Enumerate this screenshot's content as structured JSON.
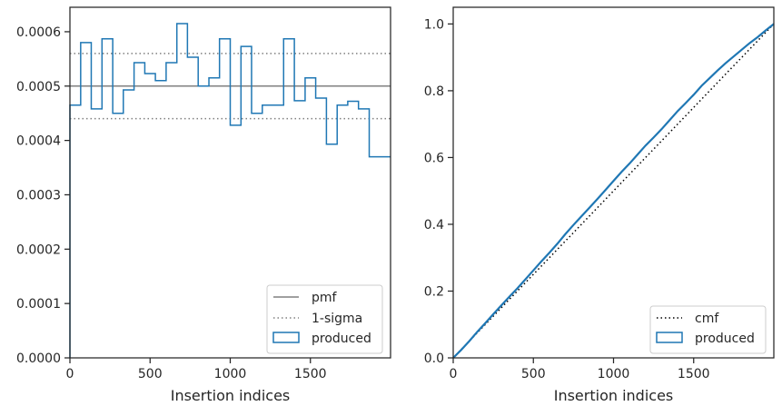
{
  "chart_data": [
    {
      "type": "histogram-step",
      "xlabel": "Insertion indices",
      "ylabel": "",
      "xlim": [
        0,
        2000
      ],
      "ylim": [
        0,
        0.000645
      ],
      "xticks": [
        "0",
        "500",
        "1000",
        "1500"
      ],
      "yticks": [
        "0.0000",
        "0.0001",
        "0.0002",
        "0.0003",
        "0.0004",
        "0.0005",
        "0.0006"
      ],
      "grid": false,
      "legend_position": "lower-right",
      "reference_lines": {
        "pmf": 0.0005,
        "sigma_upper": 0.00056,
        "sigma_lower": 0.00044
      },
      "bin_edges": [
        0,
        67,
        133,
        200,
        267,
        333,
        400,
        467,
        533,
        600,
        667,
        733,
        800,
        867,
        933,
        1000,
        1067,
        1133,
        1200,
        1267,
        1333,
        1400,
        1467,
        1533,
        1600,
        1667,
        1733,
        1800,
        1867,
        1933,
        2000
      ],
      "values": [
        0.000465,
        0.00058,
        0.000458,
        0.000587,
        0.00045,
        0.000493,
        0.000543,
        0.000523,
        0.00051,
        0.000543,
        0.000615,
        0.000553,
        0.0005,
        0.000515,
        0.000587,
        0.000428,
        0.000573,
        0.00045,
        0.000465,
        0.000465,
        0.000587,
        0.000473,
        0.000515,
        0.000478,
        0.000393,
        0.000465,
        0.000472,
        0.000458,
        0.00037,
        0.00037
      ],
      "legend": [
        {
          "label": "pmf",
          "style": "solid-line",
          "color": "#808080"
        },
        {
          "label": "1-sigma",
          "style": "dotted-line",
          "color": "#808080"
        },
        {
          "label": "produced",
          "style": "patch",
          "color": "#1f77b4"
        }
      ]
    },
    {
      "type": "line",
      "xlabel": "Insertion indices",
      "ylabel": "",
      "xlim": [
        0,
        2000
      ],
      "ylim": [
        0,
        1.05
      ],
      "xticks": [
        "0",
        "500",
        "1000",
        "1500"
      ],
      "yticks": [
        "0.0",
        "0.2",
        "0.4",
        "0.6",
        "0.8",
        "1.0"
      ],
      "grid": false,
      "legend_position": "lower-right",
      "series": [
        {
          "name": "cmf",
          "style": "dotted",
          "color": "#000000",
          "x": [
            0,
            2000
          ],
          "y": [
            0,
            1
          ]
        },
        {
          "name": "produced",
          "style": "solid",
          "color": "#1f77b4",
          "x": [
            0,
            50,
            100,
            150,
            200,
            250,
            300,
            350,
            400,
            450,
            500,
            550,
            600,
            650,
            700,
            750,
            800,
            850,
            900,
            950,
            1000,
            1050,
            1100,
            1150,
            1200,
            1250,
            1300,
            1350,
            1400,
            1450,
            1500,
            1550,
            1600,
            1650,
            1700,
            1750,
            1800,
            1850,
            1900,
            1950,
            2000
          ],
          "y": [
            0,
            0.024,
            0.05,
            0.078,
            0.104,
            0.131,
            0.157,
            0.183,
            0.208,
            0.235,
            0.262,
            0.289,
            0.315,
            0.342,
            0.371,
            0.398,
            0.424,
            0.45,
            0.476,
            0.503,
            0.53,
            0.557,
            0.582,
            0.609,
            0.636,
            0.66,
            0.685,
            0.712,
            0.739,
            0.763,
            0.788,
            0.815,
            0.838,
            0.861,
            0.883,
            0.903,
            0.923,
            0.943,
            0.961,
            0.981,
            1.0
          ]
        }
      ],
      "legend": [
        {
          "label": "cmf",
          "style": "dotted-line",
          "color": "#000000"
        },
        {
          "label": "produced",
          "style": "patch",
          "color": "#1f77b4"
        }
      ]
    }
  ]
}
